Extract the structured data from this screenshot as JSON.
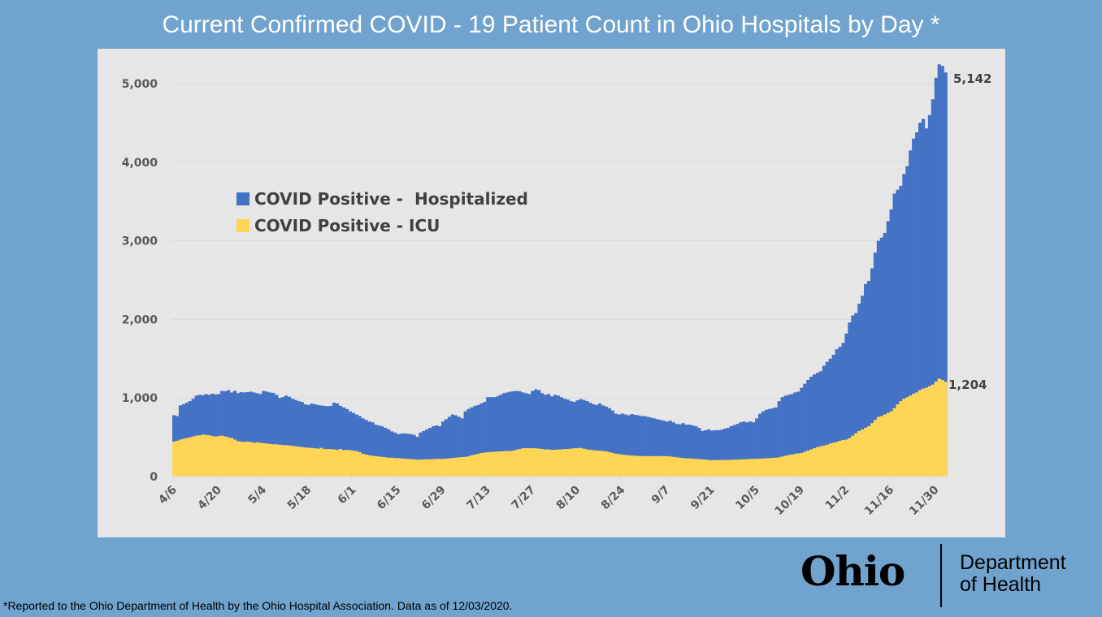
{
  "title": "Current Confirmed COVID - 19 Patient Count in Ohio Hospitals by Day *",
  "footnote": "*Reported to the Ohio Department of Health by the Ohio Hospital Association. Data as of 12/03/2020.",
  "logo": {
    "wordmark": "Ohio",
    "line1": "Department",
    "line2": "of Health"
  },
  "chart_data": {
    "type": "bar",
    "overlap": true,
    "start_date": "4/6",
    "end_date": "12/3",
    "x_tick_labels": [
      "4/6",
      "4/20",
      "5/4",
      "5/18",
      "6/1",
      "6/15",
      "6/29",
      "7/13",
      "7/27",
      "8/10",
      "8/24",
      "9/7",
      "9/21",
      "10/5",
      "10/19",
      "11/2",
      "11/16",
      "11/30"
    ],
    "y_tick_labels": [
      "0",
      "1,000",
      "2,000",
      "3,000",
      "4,000",
      "5,000"
    ],
    "ylim": [
      0,
      5300
    ],
    "grid": true,
    "legend_placement": "upper-left",
    "last_value_labels": {
      "hospitalized": "5,142",
      "icu": "1,204"
    },
    "series": [
      {
        "name": "COVID Positive -  Hospitalized",
        "color": "#4472c4",
        "values": [
          780,
          770,
          905,
          920,
          940,
          960,
          990,
          1030,
          1040,
          1035,
          1050,
          1040,
          1055,
          1045,
          1050,
          1090,
          1085,
          1100,
          1070,
          1090,
          1060,
          1075,
          1070,
          1075,
          1080,
          1070,
          1060,
          1050,
          1090,
          1080,
          1070,
          1065,
          1040,
          1000,
          1010,
          1030,
          1015,
          990,
          975,
          960,
          950,
          920,
          910,
          930,
          920,
          910,
          905,
          900,
          895,
          900,
          940,
          930,
          900,
          880,
          860,
          830,
          810,
          790,
          770,
          740,
          720,
          700,
          690,
          660,
          650,
          640,
          620,
          600,
          575,
          560,
          540,
          545,
          550,
          545,
          540,
          530,
          505,
          560,
          580,
          600,
          620,
          640,
          650,
          640,
          700,
          730,
          760,
          790,
          780,
          760,
          740,
          830,
          860,
          880,
          900,
          910,
          930,
          950,
          1010,
          1010,
          1010,
          1020,
          1040,
          1060,
          1070,
          1080,
          1085,
          1090,
          1085,
          1070,
          1060,
          1050,
          1090,
          1110,
          1100,
          1060,
          1040,
          1050,
          1020,
          1040,
          1030,
          1010,
          990,
          980,
          960,
          950,
          970,
          985,
          975,
          960,
          940,
          920,
          910,
          930,
          905,
          890,
          870,
          840,
          800,
          790,
          800,
          790,
          780,
          795,
          785,
          780,
          770,
          770,
          760,
          750,
          740,
          730,
          720,
          710,
          700,
          710,
          690,
          670,
          665,
          680,
          660,
          660,
          650,
          640,
          620,
          580,
          590,
          600,
          585,
          590,
          590,
          595,
          610,
          620,
          640,
          655,
          670,
          690,
          700,
          690,
          700,
          690,
          740,
          800,
          830,
          850,
          860,
          870,
          880,
          960,
          1010,
          1030,
          1040,
          1050,
          1070,
          1080,
          1130,
          1180,
          1230,
          1270,
          1300,
          1320,
          1340,
          1410,
          1460,
          1500,
          1550,
          1620,
          1650,
          1700,
          1820,
          1960,
          2050,
          2080,
          2200,
          2300,
          2450,
          2490,
          2650,
          2850,
          3000,
          3040,
          3100,
          3250,
          3400,
          3600,
          3650,
          3700,
          3850,
          3950,
          4150,
          4300,
          4380,
          4500,
          4550,
          4430,
          4600,
          4800,
          5075,
          5245,
          5225,
          5142
        ]
      },
      {
        "name": "COVID Positive - ICU",
        "color": "#ffd556",
        "values": [
          445,
          455,
          470,
          480,
          490,
          500,
          510,
          520,
          525,
          535,
          530,
          525,
          515,
          510,
          515,
          520,
          510,
          500,
          490,
          470,
          450,
          445,
          440,
          445,
          440,
          430,
          435,
          430,
          425,
          420,
          415,
          410,
          410,
          405,
          400,
          400,
          395,
          390,
          385,
          380,
          375,
          370,
          365,
          365,
          360,
          355,
          365,
          350,
          350,
          350,
          345,
          340,
          350,
          335,
          340,
          335,
          330,
          325,
          310,
          290,
          280,
          270,
          265,
          260,
          255,
          250,
          245,
          240,
          240,
          235,
          235,
          230,
          228,
          225,
          222,
          220,
          215,
          215,
          218,
          220,
          220,
          222,
          225,
          225,
          225,
          228,
          232,
          236,
          240,
          245,
          248,
          250,
          258,
          270,
          280,
          290,
          300,
          305,
          310,
          312,
          315,
          318,
          320,
          322,
          325,
          325,
          330,
          340,
          350,
          360,
          362,
          360,
          360,
          360,
          355,
          350,
          345,
          345,
          340,
          340,
          345,
          345,
          350,
          350,
          355,
          360,
          360,
          365,
          355,
          345,
          340,
          335,
          330,
          330,
          325,
          320,
          310,
          300,
          290,
          285,
          280,
          275,
          270,
          268,
          265,
          262,
          260,
          260,
          262,
          258,
          260,
          262,
          260,
          260,
          260,
          255,
          250,
          245,
          240,
          235,
          232,
          230,
          228,
          225,
          222,
          218,
          215,
          210,
          208,
          210,
          210,
          212,
          212,
          210,
          214,
          215,
          216,
          218,
          220,
          222,
          224,
          225,
          226,
          228,
          230,
          232,
          234,
          238,
          240,
          245,
          255,
          265,
          275,
          280,
          290,
          295,
          300,
          315,
          330,
          345,
          360,
          375,
          385,
          395,
          405,
          420,
          430,
          440,
          455,
          465,
          470,
          490,
          520,
          550,
          580,
          600,
          620,
          640,
          680,
          720,
          760,
          770,
          790,
          810,
          830,
          870,
          920,
          960,
          990,
          1010,
          1030,
          1055,
          1070,
          1100,
          1120,
          1130,
          1150,
          1170,
          1210,
          1245,
          1230,
          1204
        ]
      }
    ]
  }
}
